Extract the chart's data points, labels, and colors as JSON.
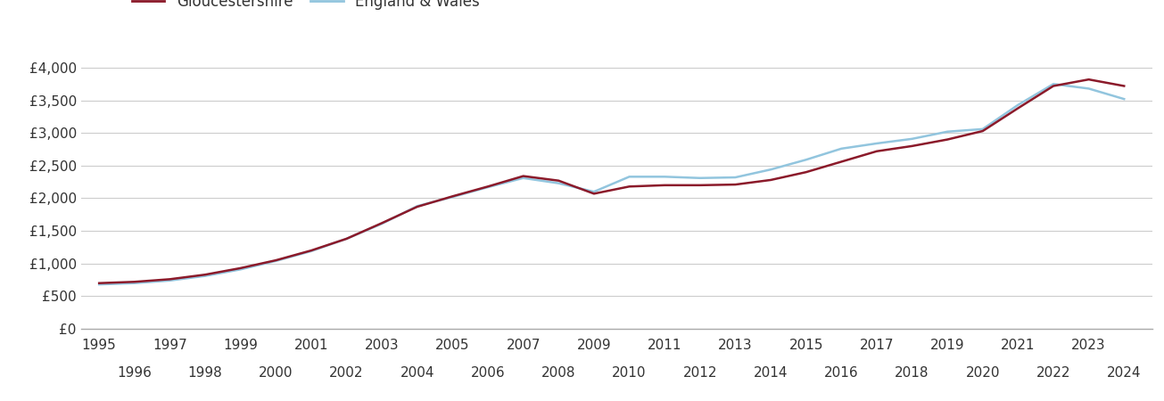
{
  "gloucestershire": {
    "years": [
      1995,
      1996,
      1997,
      1998,
      1999,
      2000,
      2001,
      2002,
      2003,
      2004,
      2005,
      2006,
      2007,
      2008,
      2009,
      2010,
      2011,
      2012,
      2013,
      2014,
      2015,
      2016,
      2017,
      2018,
      2019,
      2020,
      2021,
      2022,
      2023,
      2024
    ],
    "values": [
      700,
      720,
      760,
      830,
      930,
      1050,
      1200,
      1380,
      1620,
      1870,
      2030,
      2180,
      2340,
      2270,
      2070,
      2180,
      2200,
      2200,
      2210,
      2280,
      2400,
      2560,
      2720,
      2800,
      2900,
      3030,
      3380,
      3720,
      3820,
      3720
    ]
  },
  "england_wales": {
    "years": [
      1995,
      1996,
      1997,
      1998,
      1999,
      2000,
      2001,
      2002,
      2003,
      2004,
      2005,
      2006,
      2007,
      2008,
      2009,
      2010,
      2011,
      2012,
      2013,
      2014,
      2015,
      2016,
      2017,
      2018,
      2019,
      2020,
      2021,
      2022,
      2023,
      2024
    ],
    "values": [
      680,
      700,
      740,
      810,
      910,
      1040,
      1190,
      1380,
      1610,
      1880,
      2020,
      2170,
      2310,
      2230,
      2100,
      2330,
      2330,
      2310,
      2320,
      2440,
      2590,
      2760,
      2840,
      2910,
      3020,
      3060,
      3430,
      3750,
      3680,
      3520
    ]
  },
  "gloucestershire_color": "#8b1a2a",
  "england_wales_color": "#92c5de",
  "line_width": 1.8,
  "ylim": [
    0,
    4300
  ],
  "ytick_values": [
    0,
    500,
    1000,
    1500,
    2000,
    2500,
    3000,
    3500,
    4000
  ],
  "ytick_labels": [
    "£0",
    "£500",
    "£1,000",
    "£1,500",
    "£2,000",
    "£2,500",
    "£3,000",
    "£3,500",
    "£4,000"
  ],
  "xlim_min": 1994.5,
  "xlim_max": 2024.8,
  "background_color": "#ffffff",
  "grid_color": "#cccccc",
  "legend_gloucestershire": "Gloucestershire",
  "legend_england_wales": "England & Wales",
  "font_color": "#333333",
  "odd_years": [
    1995,
    1997,
    1999,
    2001,
    2003,
    2005,
    2007,
    2009,
    2011,
    2013,
    2015,
    2017,
    2019,
    2021,
    2023
  ],
  "even_years": [
    1996,
    1998,
    2000,
    2002,
    2004,
    2006,
    2008,
    2010,
    2012,
    2014,
    2016,
    2018,
    2020,
    2022,
    2024
  ]
}
